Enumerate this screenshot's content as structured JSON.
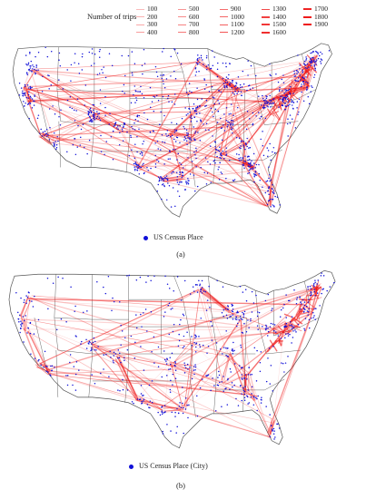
{
  "legend": {
    "title": "Number of trips",
    "items": [
      {
        "label": "100",
        "weight": 100
      },
      {
        "label": "200",
        "weight": 200
      },
      {
        "label": "300",
        "weight": 300
      },
      {
        "label": "400",
        "weight": 400
      },
      {
        "label": "500",
        "weight": 500
      },
      {
        "label": "600",
        "weight": 600
      },
      {
        "label": "700",
        "weight": 700
      },
      {
        "label": "800",
        "weight": 800
      },
      {
        "label": "900",
        "weight": 900
      },
      {
        "label": "1000",
        "weight": 1000
      },
      {
        "label": "1100",
        "weight": 1100
      },
      {
        "label": "1200",
        "weight": 1200
      },
      {
        "label": "1300",
        "weight": 1300
      },
      {
        "label": "1400",
        "weight": 1400
      },
      {
        "label": "1500",
        "weight": 1500
      },
      {
        "label": "1600",
        "weight": 1600
      },
      {
        "label": "1700",
        "weight": 1700
      },
      {
        "label": "1800",
        "weight": 1800
      },
      {
        "label": "1900",
        "weight": 1900
      }
    ]
  },
  "colors": {
    "trip_line": "#ee1111",
    "place_point": "#1010d8",
    "state_border": "#555555"
  },
  "panels": [
    {
      "id": "a",
      "label": "(a)",
      "place_legend": "US Census Place"
    },
    {
      "id": "b",
      "label": "(b)",
      "place_legend": "US Census Place (City)"
    }
  ]
}
